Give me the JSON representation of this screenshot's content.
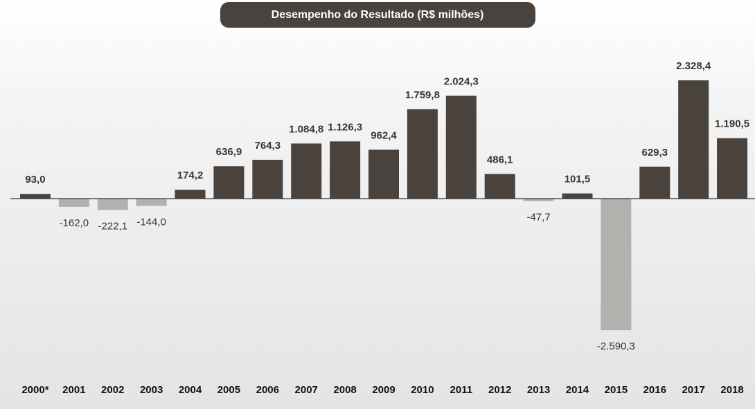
{
  "chart_data": {
    "type": "bar",
    "title": "Desempenho do Resultado (R$ milhões)",
    "categories": [
      "2000*",
      "2001",
      "2002",
      "2003",
      "2004",
      "2005",
      "2006",
      "2007",
      "2008",
      "2009",
      "2010",
      "2011",
      "2012",
      "2013",
      "2014",
      "2015",
      "2016",
      "2017",
      "2018"
    ],
    "values": [
      93.0,
      -162.0,
      -222.1,
      -144.0,
      174.2,
      636.9,
      764.3,
      1084.8,
      1126.3,
      962.4,
      1759.8,
      2024.3,
      486.1,
      -47.7,
      101.5,
      -2590.3,
      629.3,
      2328.4,
      1190.5
    ],
    "value_labels": [
      "93,0",
      "-162,0",
      "-222,1",
      "-144,0",
      "174,2",
      "636,9",
      "764,3",
      "1.084,8",
      "1.126,3",
      "962,4",
      "1.759,8",
      "2.024,3",
      "486,1",
      "-47,7",
      "101,5",
      "-2.590,3",
      "629,3",
      "2.328,4",
      "1.190,5"
    ],
    "color": "#4a423c",
    "negative_color": "#b3b1ae",
    "ylim": [
      -2800,
      2800
    ]
  }
}
